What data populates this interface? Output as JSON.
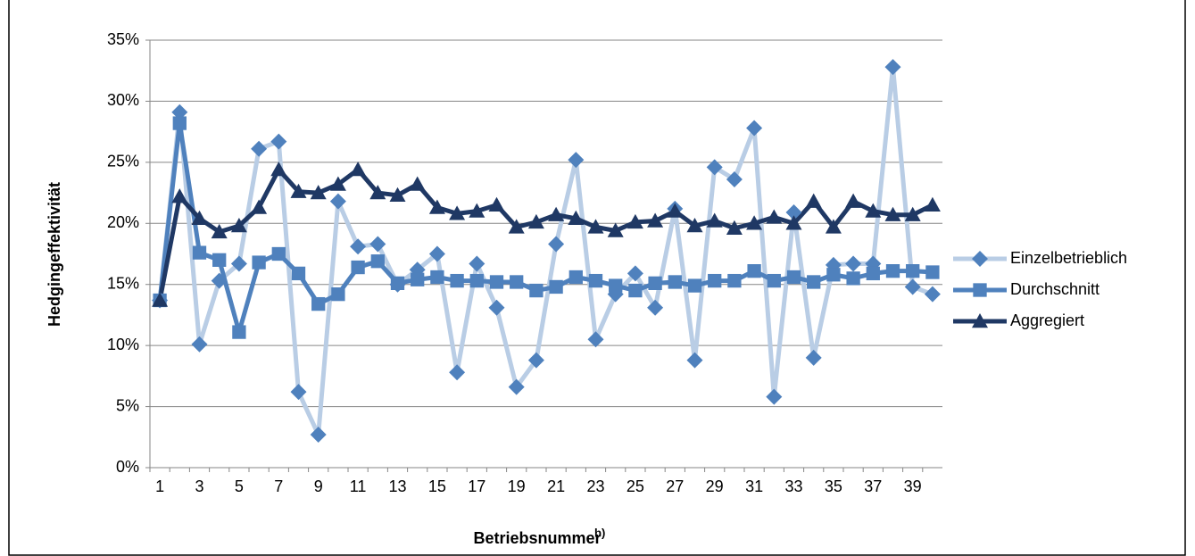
{
  "chart_data": {
    "type": "line",
    "y_label": "Hedgingeffektivität",
    "x_label": "Betriebsnummer",
    "x_label_note": "b)",
    "categories": [
      "1",
      null,
      "3",
      null,
      "5",
      null,
      "7",
      null,
      "9",
      null,
      "11",
      null,
      "13",
      null,
      "15",
      null,
      "17",
      null,
      "19",
      null,
      "21",
      null,
      "23",
      null,
      "25",
      null,
      "27",
      null,
      "29",
      null,
      "31",
      null,
      "33",
      null,
      "35",
      null,
      "37",
      null,
      "39",
      null
    ],
    "ylim": [
      0,
      35
    ],
    "yticks": [
      {
        "value": 0,
        "label": "0%"
      },
      {
        "value": 5,
        "label": "5%"
      },
      {
        "value": 10,
        "label": "10%"
      },
      {
        "value": 15,
        "label": "15%"
      },
      {
        "value": 20,
        "label": "20%"
      },
      {
        "value": 25,
        "label": "25%"
      },
      {
        "value": 30,
        "label": "30%"
      },
      {
        "value": 35,
        "label": "35%"
      }
    ],
    "grid": true,
    "legend": "right",
    "series": [
      {
        "name": "Einzelbetrieblich",
        "color": "#b9cde5",
        "marker": "diamond",
        "marker_color": "#4f81bd",
        "values": [
          13.7,
          29.1,
          10.1,
          15.3,
          16.7,
          26.1,
          26.7,
          6.2,
          2.7,
          21.8,
          18.1,
          18.3,
          15.0,
          16.2,
          17.5,
          7.8,
          16.7,
          13.1,
          6.6,
          8.8,
          18.3,
          25.2,
          10.5,
          14.2,
          15.9,
          13.1,
          21.2,
          8.8,
          24.6,
          23.6,
          27.8,
          5.8,
          20.9,
          9.0,
          16.6,
          16.7,
          16.7,
          32.8,
          14.8,
          14.2
        ]
      },
      {
        "name": "Durchschnitt",
        "color": "#4f81bd",
        "marker": "square",
        "marker_color": "#4f81bd",
        "values": [
          13.7,
          28.2,
          17.6,
          17.0,
          11.1,
          16.8,
          17.5,
          15.9,
          13.4,
          14.2,
          16.4,
          16.9,
          15.1,
          15.4,
          15.6,
          15.3,
          15.3,
          15.2,
          15.2,
          14.5,
          14.8,
          15.6,
          15.3,
          14.9,
          14.5,
          15.1,
          15.2,
          14.9,
          15.3,
          15.3,
          16.1,
          15.3,
          15.6,
          15.2,
          15.8,
          15.5,
          15.9,
          16.1,
          16.1,
          16.0
        ]
      },
      {
        "name": "Aggregiert",
        "color": "#1f3864",
        "marker": "triangle",
        "marker_color": "#1f3864",
        "values": [
          13.7,
          22.2,
          20.4,
          19.3,
          19.8,
          21.3,
          24.4,
          22.6,
          22.5,
          23.2,
          24.4,
          22.5,
          22.3,
          23.2,
          21.3,
          20.8,
          21.0,
          21.5,
          19.7,
          20.1,
          20.7,
          20.4,
          19.7,
          19.4,
          20.1,
          20.2,
          21.0,
          19.8,
          20.2,
          19.6,
          20.0,
          20.5,
          20.0,
          21.8,
          19.7,
          21.8,
          21.0,
          20.7,
          20.7,
          21.5
        ]
      }
    ]
  }
}
